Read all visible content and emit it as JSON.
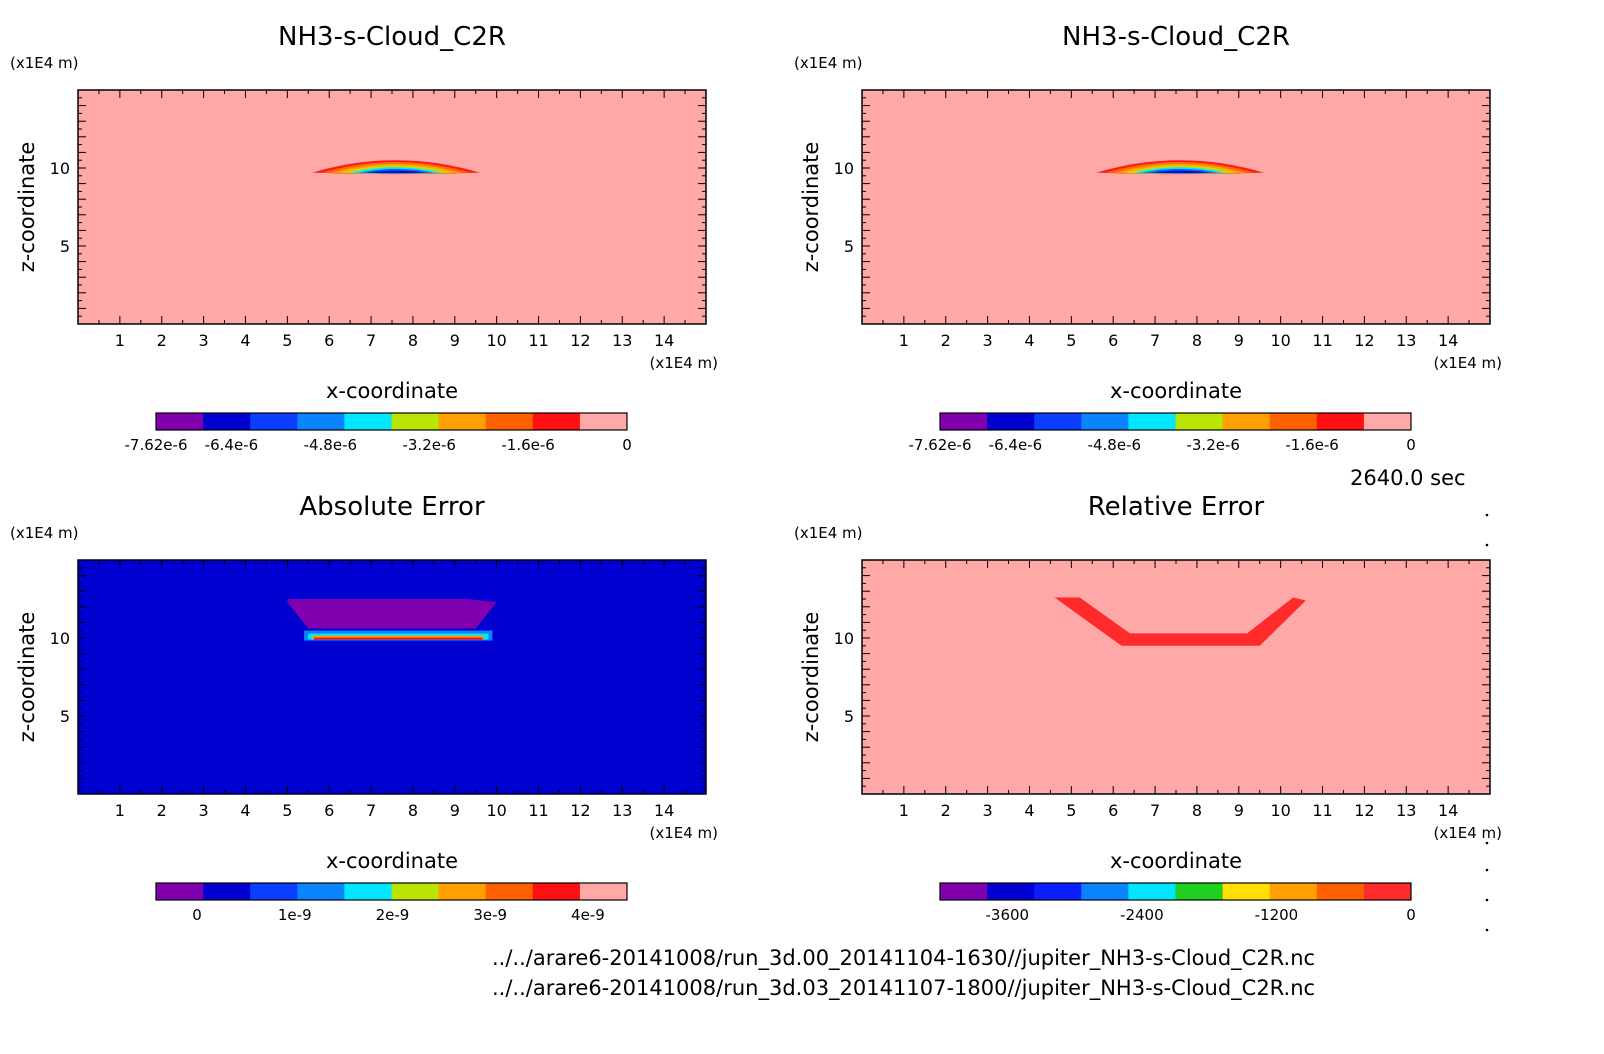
{
  "time_label": "2640.0 sec",
  "file_paths": [
    "../../arare6-20141008/run_3d.00_20141104-1630//jupiter_NH3-s-Cloud_C2R.nc",
    "../../arare6-20141008/run_3d.03_20141107-1800//jupiter_NH3-s-Cloud_C2R.nc"
  ],
  "chart_data": [
    {
      "type": "heatmap",
      "title": "NH3-s-Cloud_C2R",
      "xlabel": "x-coordinate",
      "ylabel": "z-coordinate",
      "x_unit": "(x1E4 m)",
      "y_unit": "(x1E4 m)",
      "xlim": [
        0,
        15
      ],
      "ylim": [
        0,
        15
      ],
      "xticks": [
        "1",
        "2",
        "3",
        "4",
        "5",
        "6",
        "7",
        "8",
        "9",
        "10",
        "11",
        "12",
        "13",
        "14"
      ],
      "yticks": [
        "5",
        "10"
      ],
      "background_color": "#ffa8a8",
      "feature": {
        "kind": "cloud_band",
        "x_range": [
          5.6,
          9.6
        ],
        "z_range": [
          9.7,
          10.5
        ],
        "colors": [
          "#ff1a1a",
          "#ff6a00",
          "#ffa000",
          "#c8e000",
          "#00e8ff",
          "#1060ff",
          "#0010d0"
        ]
      },
      "colorbar": {
        "colors": [
          "#8000b0",
          "#0000d0",
          "#0a3dff",
          "#0a84ff",
          "#00e6ff",
          "#b8e600",
          "#ffa000",
          "#ff6000",
          "#ff1010",
          "#ffa8a8"
        ],
        "labels": [
          "-7.62e-6",
          "-6.4e-6",
          "-4.8e-6",
          "-3.2e-6",
          "-1.6e-6",
          "0"
        ],
        "label_positions": [
          -7.62e-06,
          -6.4e-06,
          -4.8e-06,
          -3.2e-06,
          -1.6e-06,
          0
        ],
        "range": [
          -7.62e-06,
          0
        ]
      }
    },
    {
      "type": "heatmap",
      "title": "NH3-s-Cloud_C2R",
      "xlabel": "x-coordinate",
      "ylabel": "z-coordinate",
      "x_unit": "(x1E4 m)",
      "y_unit": "(x1E4 m)",
      "xlim": [
        0,
        15
      ],
      "ylim": [
        0,
        15
      ],
      "xticks": [
        "1",
        "2",
        "3",
        "4",
        "5",
        "6",
        "7",
        "8",
        "9",
        "10",
        "11",
        "12",
        "13",
        "14"
      ],
      "yticks": [
        "5",
        "10"
      ],
      "background_color": "#ffa8a8",
      "feature": {
        "kind": "cloud_band",
        "x_range": [
          5.6,
          9.6
        ],
        "z_range": [
          9.7,
          10.5
        ],
        "colors": [
          "#ff1a1a",
          "#ff6a00",
          "#ffa000",
          "#c8e000",
          "#00e8ff",
          "#1060ff",
          "#0010d0"
        ]
      },
      "colorbar": {
        "colors": [
          "#8000b0",
          "#0000d0",
          "#0a3dff",
          "#0a84ff",
          "#00e6ff",
          "#b8e600",
          "#ffa000",
          "#ff6000",
          "#ff1010",
          "#ffa8a8"
        ],
        "labels": [
          "-7.62e-6",
          "-6.4e-6",
          "-4.8e-6",
          "-3.2e-6",
          "-1.6e-6",
          "0"
        ],
        "label_positions": [
          -7.62e-06,
          -6.4e-06,
          -4.8e-06,
          -3.2e-06,
          -1.6e-06,
          0
        ],
        "range": [
          -7.62e-06,
          0
        ]
      }
    },
    {
      "type": "heatmap",
      "title": "Absolute Error",
      "xlabel": "x-coordinate",
      "ylabel": "z-coordinate",
      "x_unit": "(x1E4 m)",
      "y_unit": "(x1E4 m)",
      "xlim": [
        0,
        15
      ],
      "ylim": [
        0,
        15
      ],
      "xticks": [
        "1",
        "2",
        "3",
        "4",
        "5",
        "6",
        "7",
        "8",
        "9",
        "10",
        "11",
        "12",
        "13",
        "14"
      ],
      "yticks": [
        "5",
        "10"
      ],
      "background_color": "#0000d0",
      "feature": {
        "kind": "error_plume",
        "purple_region": [
          [
            5.0,
            12.5
          ],
          [
            9.3,
            12.5
          ],
          [
            10.0,
            12.3
          ],
          [
            9.5,
            10.6
          ],
          [
            5.5,
            10.6
          ],
          [
            5.0,
            12.3
          ]
        ],
        "band_x_range": [
          5.4,
          9.9
        ],
        "band_z": 9.9,
        "colors": [
          "#8000b0",
          "#ff1010",
          "#ffa000",
          "#00e6ff",
          "#0a84ff"
        ]
      },
      "colorbar": {
        "colors": [
          "#8000b0",
          "#0000d0",
          "#0a3dff",
          "#0a84ff",
          "#00e6ff",
          "#b8e600",
          "#ffa000",
          "#ff6000",
          "#ff1010",
          "#ffa8a8"
        ],
        "labels": [
          "0",
          "1e-9",
          "2e-9",
          "3e-9",
          "4e-9"
        ],
        "label_positions": [
          0,
          1e-09,
          2e-09,
          3e-09,
          4e-09
        ],
        "range": [
          -4.2e-10,
          4.4e-09
        ]
      }
    },
    {
      "type": "heatmap",
      "title": "Relative Error",
      "xlabel": "x-coordinate",
      "ylabel": "z-coordinate",
      "x_unit": "(x1E4 m)",
      "y_unit": "(x1E4 m)",
      "xlim": [
        0,
        15
      ],
      "ylim": [
        0,
        15
      ],
      "xticks": [
        "1",
        "2",
        "3",
        "4",
        "5",
        "6",
        "7",
        "8",
        "9",
        "10",
        "11",
        "12",
        "13",
        "14"
      ],
      "yticks": [
        "5",
        "10"
      ],
      "background_color": "#ffa8a8",
      "feature": {
        "kind": "error_bowl",
        "region": [
          [
            4.6,
            12.6
          ],
          [
            5.2,
            12.6
          ],
          [
            6.4,
            10.3
          ],
          [
            9.2,
            10.3
          ],
          [
            10.3,
            12.6
          ],
          [
            10.6,
            12.4
          ],
          [
            9.5,
            9.5
          ],
          [
            6.2,
            9.5
          ]
        ],
        "color": "#ff2a2a"
      },
      "colorbar": {
        "colors": [
          "#8000b0",
          "#0000d0",
          "#0a1eff",
          "#0a84ff",
          "#00e6ff",
          "#20d020",
          "#ffe000",
          "#ffa000",
          "#ff6000",
          "#ff2a2a"
        ],
        "labels": [
          "-3600",
          "-2400",
          "-1200",
          "0"
        ],
        "label_positions": [
          -3600,
          -2400,
          -1200,
          0
        ],
        "range": [
          -4200,
          0
        ]
      }
    }
  ]
}
